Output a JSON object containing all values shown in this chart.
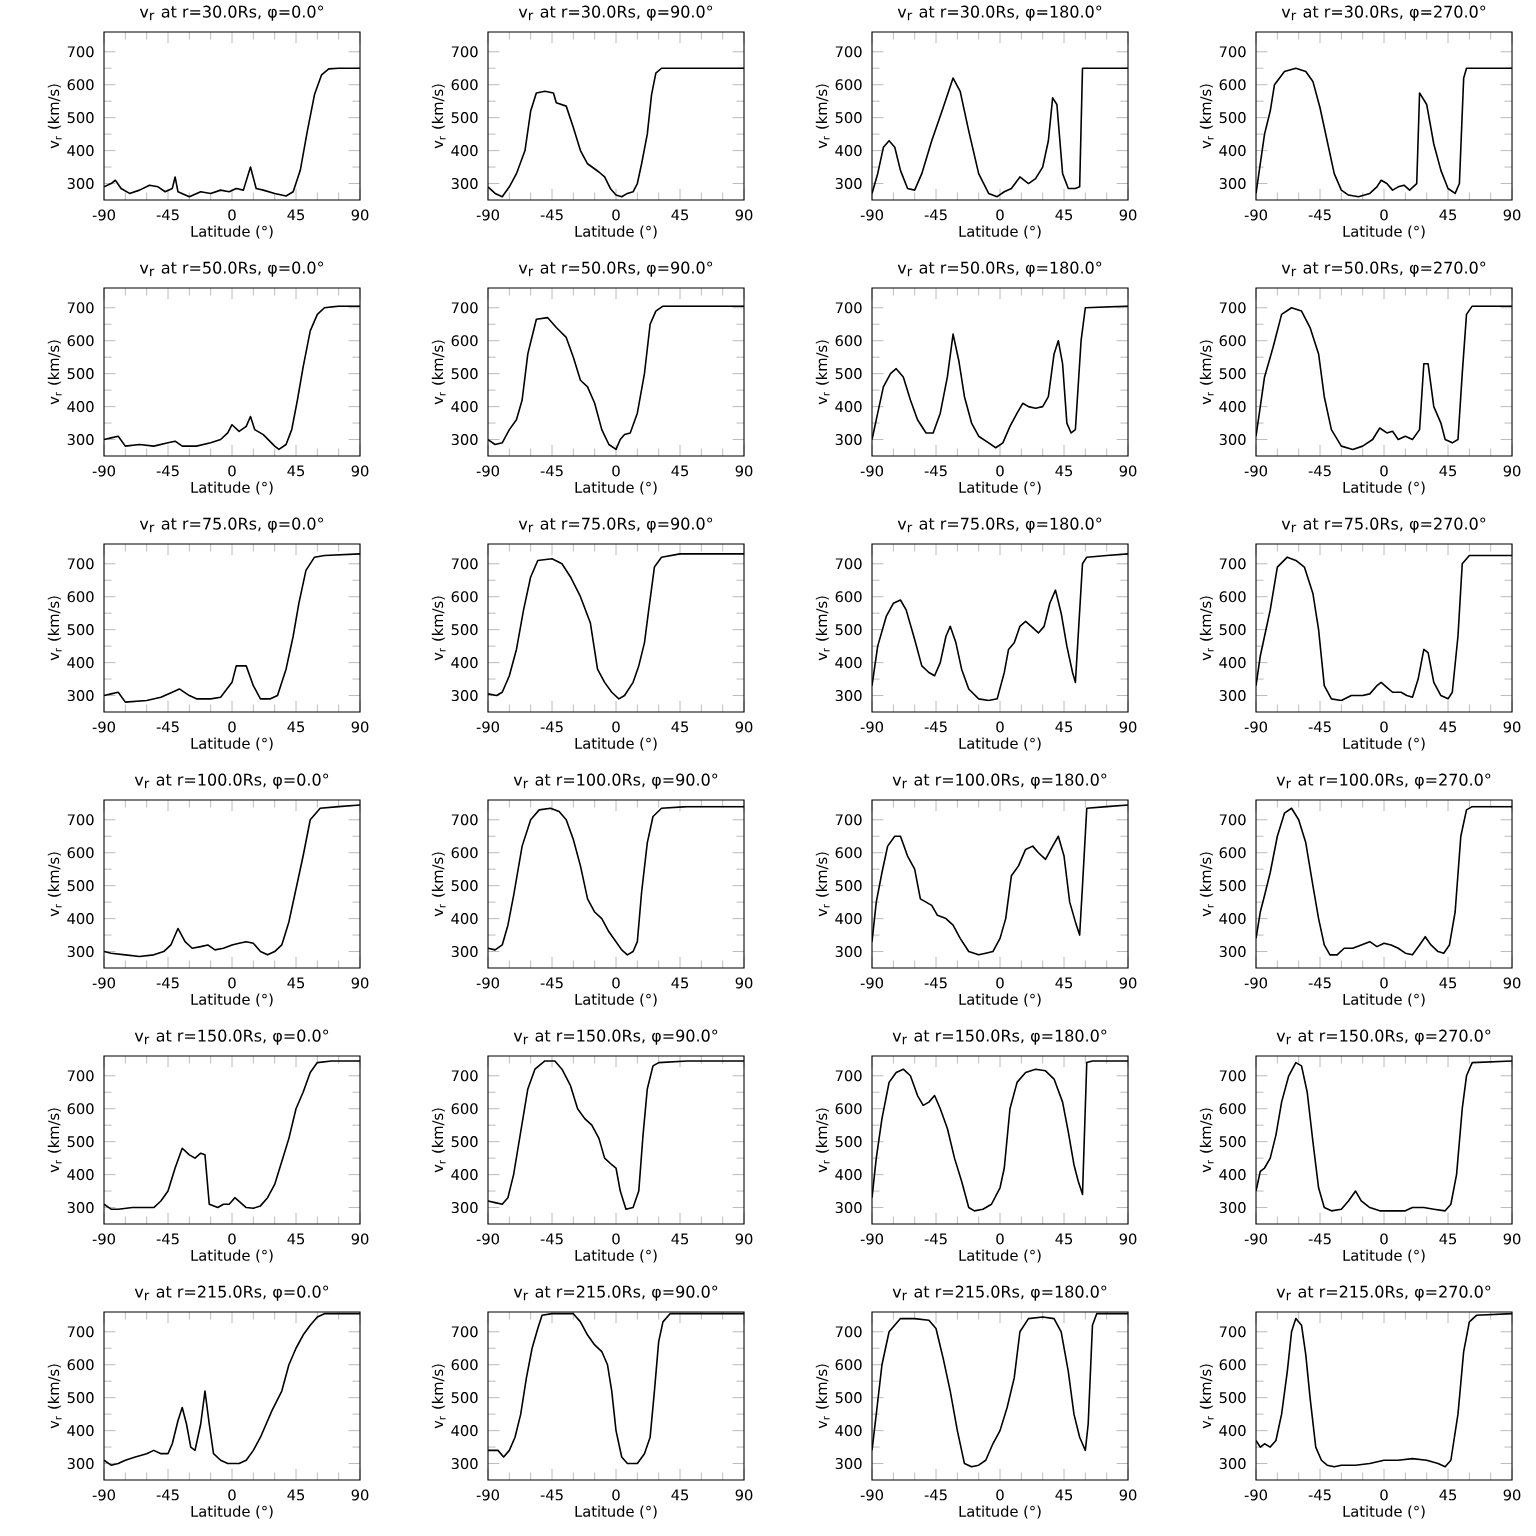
{
  "chart_data": [
    {
      "type": "line",
      "title": "v$_{r}$ at r=30.0Rs, φ=0.0°",
      "xlabel": "Latitude (°)",
      "ylabel": "v$_{r}$ (km/s)",
      "xlim": [
        -90,
        90
      ],
      "xticks": [
        -90,
        -45,
        0,
        45,
        90
      ],
      "ylim": [
        250,
        760
      ],
      "yticks": [
        300,
        400,
        500,
        600,
        700
      ],
      "color": "#000000",
      "x": [
        -90,
        -85,
        -82,
        -78,
        -72,
        -65,
        -58,
        -52,
        -47,
        -42,
        -40,
        -38,
        -30,
        -22,
        -15,
        -8,
        -2,
        3,
        8,
        13,
        17,
        22,
        30,
        38,
        43,
        48,
        53,
        58,
        63,
        68,
        75,
        90
      ],
      "values": [
        290,
        300,
        310,
        285,
        270,
        280,
        295,
        290,
        275,
        285,
        320,
        275,
        260,
        275,
        270,
        280,
        275,
        285,
        280,
        350,
        285,
        280,
        270,
        262,
        275,
        340,
        460,
        570,
        630,
        648,
        650,
        650
      ]
    },
    {
      "type": "line",
      "title": "v$_{r}$ at r=30.0Rs, φ=90.0°",
      "xlabel": "Latitude (°)",
      "ylabel": "v$_{r}$ (km/s)",
      "xlim": [
        -90,
        90
      ],
      "xticks": [
        -90,
        -45,
        0,
        45,
        90
      ],
      "ylim": [
        250,
        760
      ],
      "yticks": [
        300,
        400,
        500,
        600,
        700
      ],
      "color": "#000000",
      "x": [
        -90,
        -85,
        -80,
        -75,
        -70,
        -64,
        -60,
        -56,
        -50,
        -44,
        -42,
        -35,
        -30,
        -25,
        -20,
        -12,
        -8,
        -4,
        0,
        4,
        8,
        12,
        15,
        18,
        22,
        25,
        28,
        32,
        90
      ],
      "values": [
        290,
        270,
        260,
        290,
        330,
        400,
        520,
        575,
        580,
        575,
        545,
        535,
        470,
        400,
        360,
        335,
        320,
        285,
        265,
        260,
        270,
        275,
        300,
        360,
        450,
        570,
        635,
        650,
        650
      ]
    },
    {
      "type": "line",
      "title": "v$_{r}$ at r=30.0Rs, φ=180.0°",
      "xlabel": "Latitude (°)",
      "ylabel": "v$_{r}$ (km/s)",
      "xlim": [
        -90,
        90
      ],
      "xticks": [
        -90,
        -45,
        0,
        45,
        90
      ],
      "ylim": [
        250,
        760
      ],
      "yticks": [
        300,
        400,
        500,
        600,
        700
      ],
      "color": "#000000",
      "x": [
        -90,
        -86,
        -82,
        -78,
        -74,
        -70,
        -65,
        -60,
        -55,
        -48,
        -40,
        -33,
        -28,
        -22,
        -15,
        -8,
        -2,
        3,
        8,
        14,
        20,
        25,
        30,
        34,
        37,
        40,
        44,
        48,
        53,
        56,
        58,
        90
      ],
      "values": [
        270,
        330,
        410,
        430,
        410,
        340,
        285,
        280,
        330,
        430,
        530,
        620,
        580,
        460,
        330,
        270,
        260,
        275,
        285,
        320,
        300,
        315,
        350,
        430,
        560,
        540,
        330,
        285,
        285,
        290,
        650,
        650
      ]
    },
    {
      "type": "line",
      "title": "v$_{r}$ at r=30.0Rs, φ=270.0°",
      "xlabel": "Latitude (°)",
      "ylabel": "v$_{r}$ (km/s)",
      "xlim": [
        -90,
        90
      ],
      "xticks": [
        -90,
        -45,
        0,
        45,
        90
      ],
      "ylim": [
        250,
        760
      ],
      "yticks": [
        300,
        400,
        500,
        600,
        700
      ],
      "color": "#000000",
      "x": [
        -90,
        -88,
        -84,
        -80,
        -77,
        -70,
        -62,
        -55,
        -50,
        -45,
        -40,
        -35,
        -30,
        -25,
        -18,
        -10,
        -5,
        -2,
        2,
        6,
        10,
        14,
        18,
        23,
        25,
        30,
        35,
        40,
        45,
        50,
        53,
        56,
        58,
        90
      ],
      "values": [
        270,
        330,
        450,
        520,
        600,
        640,
        650,
        640,
        610,
        530,
        430,
        330,
        280,
        265,
        260,
        270,
        290,
        310,
        300,
        280,
        290,
        295,
        280,
        300,
        575,
        540,
        420,
        340,
        285,
        270,
        300,
        620,
        650,
        650
      ]
    },
    {
      "type": "line",
      "title": "v$_{r}$ at r=50.0Rs, φ=0.0°",
      "xlabel": "Latitude (°)",
      "ylabel": "v$_{r}$ (km/s)",
      "xlim": [
        -90,
        90
      ],
      "xticks": [
        -90,
        -45,
        0,
        45,
        90
      ],
      "ylim": [
        250,
        760
      ],
      "yticks": [
        300,
        400,
        500,
        600,
        700
      ],
      "color": "#000000",
      "x": [
        -90,
        -85,
        -80,
        -75,
        -65,
        -55,
        -45,
        -40,
        -35,
        -25,
        -15,
        -8,
        -3,
        0,
        5,
        10,
        13,
        16,
        22,
        30,
        33,
        38,
        42,
        46,
        50,
        55,
        60,
        65,
        75,
        90
      ],
      "values": [
        300,
        305,
        310,
        280,
        285,
        280,
        290,
        295,
        280,
        280,
        290,
        300,
        320,
        345,
        325,
        340,
        370,
        330,
        315,
        280,
        270,
        285,
        330,
        420,
        520,
        630,
        680,
        700,
        705,
        705
      ]
    },
    {
      "type": "line",
      "title": "v$_{r}$ at r=50.0Rs, φ=90.0°",
      "xlabel": "Latitude (°)",
      "ylabel": "v$_{r}$ (km/s)",
      "xlim": [
        -90,
        90
      ],
      "xticks": [
        -90,
        -45,
        0,
        45,
        90
      ],
      "ylim": [
        250,
        760
      ],
      "yticks": [
        300,
        400,
        500,
        600,
        700
      ],
      "color": "#000000",
      "x": [
        -90,
        -85,
        -80,
        -75,
        -70,
        -66,
        -62,
        -56,
        -48,
        -42,
        -35,
        -30,
        -25,
        -20,
        -15,
        -10,
        -5,
        0,
        3,
        6,
        10,
        15,
        20,
        24,
        28,
        33,
        90
      ],
      "values": [
        300,
        285,
        290,
        330,
        360,
        420,
        560,
        665,
        670,
        640,
        610,
        550,
        480,
        460,
        410,
        330,
        285,
        270,
        300,
        315,
        320,
        380,
        500,
        650,
        690,
        705,
        705
      ]
    },
    {
      "type": "line",
      "title": "v$_{r}$ at r=50.0Rs, φ=180.0°",
      "xlabel": "Latitude (°)",
      "ylabel": "v$_{r}$ (km/s)",
      "xlim": [
        -90,
        90
      ],
      "xticks": [
        -90,
        -45,
        0,
        45,
        90
      ],
      "ylim": [
        250,
        760
      ],
      "yticks": [
        300,
        400,
        500,
        600,
        700
      ],
      "color": "#000000",
      "x": [
        -90,
        -86,
        -82,
        -77,
        -73,
        -68,
        -63,
        -58,
        -52,
        -47,
        -42,
        -37,
        -33,
        -29,
        -25,
        -20,
        -15,
        -8,
        -3,
        2,
        7,
        12,
        16,
        20,
        25,
        30,
        34,
        38,
        41,
        44,
        47,
        50,
        53,
        57,
        60,
        90
      ],
      "values": [
        300,
        380,
        460,
        500,
        515,
        490,
        420,
        360,
        320,
        320,
        380,
        490,
        620,
        540,
        430,
        350,
        310,
        290,
        275,
        290,
        340,
        380,
        410,
        400,
        395,
        400,
        430,
        560,
        600,
        530,
        350,
        320,
        330,
        600,
        700,
        705
      ]
    },
    {
      "type": "line",
      "title": "v$_{r}$ at r=50.0Rs, φ=270.0°",
      "xlabel": "Latitude (°)",
      "ylabel": "v$_{r}$ (km/s)",
      "xlim": [
        -90,
        90
      ],
      "xticks": [
        -90,
        -45,
        0,
        45,
        90
      ],
      "ylim": [
        250,
        760
      ],
      "yticks": [
        300,
        400,
        500,
        600,
        700
      ],
      "color": "#000000",
      "x": [
        -90,
        -87,
        -84,
        -78,
        -72,
        -65,
        -58,
        -52,
        -46,
        -42,
        -37,
        -30,
        -22,
        -15,
        -8,
        -3,
        2,
        6,
        10,
        15,
        20,
        25,
        28,
        31,
        35,
        40,
        43,
        48,
        52,
        55,
        58,
        62,
        90
      ],
      "values": [
        310,
        400,
        490,
        580,
        680,
        700,
        690,
        640,
        560,
        430,
        330,
        280,
        270,
        280,
        300,
        335,
        320,
        325,
        300,
        310,
        300,
        330,
        530,
        530,
        400,
        350,
        300,
        290,
        300,
        500,
        680,
        705,
        705
      ]
    },
    {
      "type": "line",
      "title": "v$_{r}$ at r=75.0Rs, φ=0.0°",
      "xlabel": "Latitude (°)",
      "ylabel": "v$_{r}$ (km/s)",
      "xlim": [
        -90,
        90
      ],
      "xticks": [
        -90,
        -45,
        0,
        45,
        90
      ],
      "ylim": [
        250,
        760
      ],
      "yticks": [
        300,
        400,
        500,
        600,
        700
      ],
      "color": "#000000",
      "x": [
        -90,
        -85,
        -80,
        -75,
        -60,
        -50,
        -42,
        -37,
        -30,
        -25,
        -15,
        -8,
        0,
        3,
        10,
        15,
        20,
        27,
        32,
        38,
        43,
        47,
        52,
        58,
        65,
        90
      ],
      "values": [
        300,
        305,
        310,
        280,
        285,
        295,
        310,
        320,
        300,
        290,
        290,
        295,
        340,
        390,
        390,
        330,
        290,
        290,
        300,
        380,
        480,
        580,
        680,
        720,
        725,
        730
      ]
    },
    {
      "type": "line",
      "title": "v$_{r}$ at r=75.0Rs, φ=90.0°",
      "xlabel": "Latitude (°)",
      "ylabel": "v$_{r}$ (km/s)",
      "xlim": [
        -90,
        90
      ],
      "xticks": [
        -90,
        -45,
        0,
        45,
        90
      ],
      "ylim": [
        250,
        760
      ],
      "yticks": [
        300,
        400,
        500,
        600,
        700
      ],
      "color": "#000000",
      "x": [
        -90,
        -84,
        -80,
        -75,
        -70,
        -65,
        -60,
        -55,
        -45,
        -38,
        -32,
        -25,
        -18,
        -13,
        -8,
        -3,
        2,
        6,
        12,
        16,
        20,
        23,
        27,
        32,
        45,
        90
      ],
      "values": [
        305,
        300,
        310,
        360,
        440,
        560,
        660,
        710,
        715,
        700,
        660,
        600,
        520,
        380,
        340,
        310,
        290,
        300,
        340,
        390,
        460,
        560,
        690,
        720,
        730,
        730
      ]
    },
    {
      "type": "line",
      "title": "v$_{r}$ at r=75.0Rs, φ=180.0°",
      "xlabel": "Latitude (°)",
      "ylabel": "v$_{r}$ (km/s)",
      "xlim": [
        -90,
        90
      ],
      "xticks": [
        -90,
        -45,
        0,
        45,
        90
      ],
      "ylim": [
        250,
        760
      ],
      "yticks": [
        300,
        400,
        500,
        600,
        700
      ],
      "color": "#000000",
      "x": [
        -90,
        -86,
        -80,
        -75,
        -70,
        -66,
        -60,
        -55,
        -50,
        -46,
        -42,
        -38,
        -35,
        -31,
        -27,
        -22,
        -15,
        -8,
        -2,
        3,
        6,
        10,
        14,
        18,
        22,
        27,
        31,
        35,
        39,
        43,
        47,
        51,
        53,
        58,
        61,
        75,
        90
      ],
      "values": [
        330,
        450,
        540,
        580,
        590,
        560,
        470,
        390,
        370,
        360,
        400,
        480,
        510,
        460,
        380,
        320,
        290,
        285,
        290,
        370,
        440,
        460,
        510,
        525,
        510,
        490,
        510,
        580,
        620,
        550,
        450,
        370,
        340,
        700,
        720,
        725,
        730
      ]
    },
    {
      "type": "line",
      "title": "v$_{r}$ at r=75.0Rs, φ=270.0°",
      "xlabel": "Latitude (°)",
      "ylabel": "v$_{r}$ (km/s)",
      "xlim": [
        -90,
        90
      ],
      "xticks": [
        -90,
        -45,
        0,
        45,
        90
      ],
      "ylim": [
        250,
        760
      ],
      "yticks": [
        300,
        400,
        500,
        600,
        700
      ],
      "color": "#000000",
      "x": [
        -90,
        -87,
        -84,
        -80,
        -75,
        -68,
        -62,
        -56,
        -50,
        -46,
        -42,
        -37,
        -30,
        -23,
        -15,
        -10,
        -5,
        -2,
        2,
        6,
        12,
        16,
        20,
        24,
        28,
        31,
        35,
        40,
        45,
        48,
        52,
        55,
        60,
        90
      ],
      "values": [
        330,
        420,
        480,
        560,
        690,
        720,
        710,
        690,
        610,
        500,
        330,
        290,
        285,
        300,
        300,
        305,
        330,
        340,
        325,
        310,
        310,
        300,
        295,
        350,
        440,
        430,
        340,
        300,
        290,
        310,
        480,
        700,
        725,
        725
      ]
    },
    {
      "type": "line",
      "title": "v$_{r}$ at r=100.0Rs, φ=0.0°",
      "xlabel": "Latitude (°)",
      "ylabel": "v$_{r}$ (km/s)",
      "xlim": [
        -90,
        90
      ],
      "xticks": [
        -90,
        -45,
        0,
        45,
        90
      ],
      "ylim": [
        250,
        760
      ],
      "yticks": [
        300,
        400,
        500,
        600,
        700
      ],
      "color": "#000000",
      "x": [
        -90,
        -85,
        -75,
        -65,
        -55,
        -48,
        -43,
        -38,
        -33,
        -28,
        -22,
        -17,
        -12,
        -6,
        0,
        5,
        10,
        15,
        20,
        25,
        30,
        35,
        40,
        45,
        50,
        55,
        62,
        75,
        90
      ],
      "values": [
        300,
        295,
        290,
        285,
        290,
        300,
        320,
        370,
        330,
        310,
        315,
        320,
        305,
        310,
        320,
        325,
        330,
        325,
        300,
        290,
        300,
        320,
        390,
        490,
        590,
        700,
        735,
        740,
        745
      ]
    },
    {
      "type": "line",
      "title": "v$_{r}$ at r=100.0Rs, φ=90.0°",
      "xlabel": "Latitude (°)",
      "ylabel": "v$_{r}$ (km/s)",
      "xlim": [
        -90,
        90
      ],
      "xticks": [
        -90,
        -45,
        0,
        45,
        90
      ],
      "ylim": [
        250,
        760
      ],
      "yticks": [
        300,
        400,
        500,
        600,
        700
      ],
      "color": "#000000",
      "x": [
        -90,
        -85,
        -80,
        -76,
        -72,
        -66,
        -60,
        -54,
        -46,
        -40,
        -35,
        -30,
        -25,
        -20,
        -15,
        -10,
        -5,
        0,
        4,
        8,
        12,
        15,
        18,
        22,
        26,
        32,
        50,
        90
      ],
      "values": [
        310,
        305,
        320,
        380,
        470,
        620,
        700,
        730,
        735,
        725,
        700,
        640,
        560,
        460,
        420,
        400,
        360,
        330,
        305,
        290,
        300,
        330,
        480,
        630,
        710,
        735,
        740,
        740
      ]
    },
    {
      "type": "line",
      "title": "v$_{r}$ at r=100.0Rs, φ=180.0°",
      "xlabel": "Latitude (°)",
      "ylabel": "v$_{r}$ (km/s)",
      "xlim": [
        -90,
        90
      ],
      "xticks": [
        -90,
        -45,
        0,
        45,
        90
      ],
      "ylim": [
        250,
        760
      ],
      "yticks": [
        300,
        400,
        500,
        600,
        700
      ],
      "color": "#000000",
      "x": [
        -90,
        -87,
        -83,
        -79,
        -74,
        -70,
        -65,
        -60,
        -56,
        -52,
        -48,
        -44,
        -38,
        -33,
        -28,
        -22,
        -15,
        -10,
        -5,
        0,
        4,
        8,
        13,
        18,
        23,
        27,
        32,
        37,
        41,
        45,
        49,
        53,
        56,
        58,
        61,
        75,
        90
      ],
      "values": [
        330,
        450,
        540,
        620,
        650,
        650,
        590,
        550,
        460,
        450,
        440,
        410,
        400,
        380,
        340,
        300,
        290,
        295,
        300,
        340,
        400,
        530,
        560,
        610,
        620,
        600,
        580,
        620,
        650,
        590,
        450,
        390,
        350,
        500,
        735,
        740,
        745
      ]
    },
    {
      "type": "line",
      "title": "v$_{r}$ at r=100.0Rs, φ=270.0°",
      "xlabel": "Latitude (°)",
      "ylabel": "v$_{r}$ (km/s)",
      "xlim": [
        -90,
        90
      ],
      "xticks": [
        -90,
        -45,
        0,
        45,
        90
      ],
      "ylim": [
        250,
        760
      ],
      "yticks": [
        300,
        400,
        500,
        600,
        700
      ],
      "color": "#000000",
      "x": [
        -90,
        -87,
        -84,
        -80,
        -75,
        -70,
        -65,
        -60,
        -55,
        -50,
        -46,
        -42,
        -38,
        -33,
        -28,
        -22,
        -16,
        -10,
        -5,
        0,
        5,
        10,
        15,
        20,
        25,
        29,
        33,
        38,
        42,
        46,
        50,
        54,
        58,
        62,
        90
      ],
      "values": [
        340,
        420,
        470,
        540,
        650,
        720,
        735,
        700,
        630,
        500,
        400,
        320,
        290,
        290,
        310,
        310,
        320,
        330,
        315,
        325,
        320,
        310,
        295,
        290,
        320,
        345,
        320,
        300,
        295,
        320,
        420,
        650,
        730,
        740,
        740
      ]
    },
    {
      "type": "line",
      "title": "v$_{r}$ at r=150.0Rs, φ=0.0°",
      "xlabel": "Latitude (°)",
      "ylabel": "v$_{r}$ (km/s)",
      "xlim": [
        -90,
        90
      ],
      "xticks": [
        -90,
        -45,
        0,
        45,
        90
      ],
      "ylim": [
        250,
        760
      ],
      "yticks": [
        300,
        400,
        500,
        600,
        700
      ],
      "color": "#000000",
      "x": [
        -90,
        -85,
        -80,
        -70,
        -55,
        -50,
        -45,
        -40,
        -35,
        -30,
        -26,
        -22,
        -19,
        -16,
        -10,
        -6,
        -2,
        2,
        6,
        10,
        15,
        20,
        25,
        30,
        35,
        40,
        45,
        50,
        55,
        60,
        70,
        90
      ],
      "values": [
        310,
        295,
        295,
        300,
        300,
        320,
        350,
        420,
        480,
        460,
        450,
        465,
        460,
        310,
        300,
        310,
        310,
        330,
        315,
        300,
        298,
        305,
        330,
        370,
        440,
        510,
        600,
        650,
        710,
        740,
        745,
        745
      ]
    },
    {
      "type": "line",
      "title": "v$_{r}$ at r=150.0Rs, φ=90.0°",
      "xlabel": "Latitude (°)",
      "ylabel": "v$_{r}$ (km/s)",
      "xlim": [
        -90,
        90
      ],
      "xticks": [
        -90,
        -45,
        0,
        45,
        90
      ],
      "ylim": [
        250,
        760
      ],
      "yticks": [
        300,
        400,
        500,
        600,
        700
      ],
      "color": "#000000",
      "x": [
        -90,
        -85,
        -80,
        -76,
        -72,
        -67,
        -62,
        -57,
        -50,
        -43,
        -38,
        -32,
        -27,
        -22,
        -17,
        -12,
        -8,
        -3,
        0,
        3,
        7,
        12,
        16,
        19,
        22,
        26,
        30,
        50,
        90
      ],
      "values": [
        320,
        315,
        310,
        330,
        400,
        530,
        660,
        720,
        745,
        745,
        720,
        670,
        600,
        570,
        550,
        510,
        450,
        430,
        420,
        350,
        295,
        300,
        350,
        520,
        660,
        730,
        740,
        745,
        745
      ]
    },
    {
      "type": "line",
      "title": "v$_{r}$ at r=150.0Rs, φ=180.0°",
      "xlabel": "Latitude (°)",
      "ylabel": "v$_{r}$ (km/s)",
      "xlim": [
        -90,
        90
      ],
      "xticks": [
        -90,
        -45,
        0,
        45,
        90
      ],
      "ylim": [
        250,
        760
      ],
      "yticks": [
        300,
        400,
        500,
        600,
        700
      ],
      "color": "#000000",
      "x": [
        -90,
        -87,
        -83,
        -78,
        -73,
        -68,
        -63,
        -58,
        -54,
        -50,
        -46,
        -42,
        -37,
        -32,
        -27,
        -22,
        -18,
        -12,
        -6,
        0,
        3,
        7,
        12,
        18,
        25,
        32,
        38,
        44,
        48,
        52,
        55,
        58,
        61,
        65,
        90
      ],
      "values": [
        330,
        450,
        570,
        680,
        710,
        720,
        700,
        640,
        610,
        620,
        640,
        600,
        540,
        450,
        380,
        300,
        290,
        295,
        310,
        360,
        420,
        600,
        680,
        710,
        720,
        715,
        690,
        620,
        530,
        430,
        380,
        340,
        740,
        745,
        745
      ]
    },
    {
      "type": "line",
      "title": "v$_{r}$ at r=150.0Rs, φ=270.0°",
      "xlabel": "Latitude (°)",
      "ylabel": "v$_{r}$ (km/s)",
      "xlim": [
        -90,
        90
      ],
      "xticks": [
        -90,
        -45,
        0,
        45,
        90
      ],
      "ylim": [
        250,
        760
      ],
      "yticks": [
        300,
        400,
        500,
        600,
        700
      ],
      "color": "#000000",
      "x": [
        -90,
        -87,
        -84,
        -80,
        -76,
        -72,
        -67,
        -62,
        -58,
        -54,
        -50,
        -46,
        -42,
        -37,
        -30,
        -25,
        -20,
        -16,
        -10,
        -3,
        5,
        15,
        20,
        28,
        35,
        43,
        47,
        51,
        55,
        58,
        62,
        90
      ],
      "values": [
        350,
        410,
        420,
        450,
        520,
        620,
        700,
        740,
        730,
        650,
        500,
        360,
        300,
        290,
        295,
        320,
        350,
        320,
        300,
        290,
        290,
        290,
        300,
        300,
        295,
        290,
        310,
        400,
        600,
        700,
        740,
        745
      ]
    },
    {
      "type": "line",
      "title": "v$_{r}$ at r=215.0Rs, φ=0.0°",
      "xlabel": "Latitude (°)",
      "ylabel": "v$_{r}$ (km/s)",
      "xlim": [
        -90,
        90
      ],
      "xticks": [
        -90,
        -45,
        0,
        45,
        90
      ],
      "ylim": [
        250,
        760
      ],
      "yticks": [
        300,
        400,
        500,
        600,
        700
      ],
      "color": "#000000",
      "x": [
        -90,
        -85,
        -80,
        -75,
        -68,
        -60,
        -55,
        -50,
        -45,
        -42,
        -38,
        -35,
        -32,
        -29,
        -26,
        -22,
        -19,
        -16,
        -13,
        -8,
        -3,
        5,
        10,
        15,
        20,
        28,
        35,
        40,
        45,
        50,
        55,
        60,
        65,
        90
      ],
      "values": [
        310,
        295,
        300,
        310,
        320,
        330,
        340,
        330,
        330,
        360,
        430,
        470,
        420,
        350,
        340,
        420,
        520,
        420,
        330,
        310,
        300,
        300,
        310,
        340,
        380,
        460,
        520,
        600,
        650,
        690,
        720,
        745,
        755,
        755
      ]
    },
    {
      "type": "line",
      "title": "v$_{r}$ at r=215.0Rs, φ=90.0°",
      "xlabel": "Latitude (°)",
      "ylabel": "v$_{r}$ (km/s)",
      "xlim": [
        -90,
        90
      ],
      "xticks": [
        -90,
        -45,
        0,
        45,
        90
      ],
      "ylim": [
        250,
        760
      ],
      "yticks": [
        300,
        400,
        500,
        600,
        700
      ],
      "color": "#000000",
      "x": [
        -90,
        -87,
        -83,
        -79,
        -75,
        -71,
        -67,
        -63,
        -59,
        -55,
        -52,
        -45,
        -30,
        -25,
        -20,
        -15,
        -10,
        -6,
        -3,
        0,
        4,
        8,
        15,
        20,
        24,
        27,
        30,
        33,
        38,
        90
      ],
      "values": [
        340,
        340,
        340,
        320,
        340,
        380,
        450,
        560,
        650,
        710,
        750,
        755,
        755,
        730,
        690,
        660,
        640,
        600,
        520,
        400,
        320,
        300,
        300,
        330,
        380,
        520,
        670,
        730,
        755,
        755
      ]
    },
    {
      "type": "line",
      "title": "v$_{r}$ at r=215.0Rs, φ=180.0°",
      "xlabel": "Latitude (°)",
      "ylabel": "v$_{r}$ (km/s)",
      "xlim": [
        -90,
        90
      ],
      "xticks": [
        -90,
        -45,
        0,
        45,
        90
      ],
      "ylim": [
        250,
        760
      ],
      "yticks": [
        300,
        400,
        500,
        600,
        700
      ],
      "color": "#000000",
      "x": [
        -90,
        -87,
        -83,
        -78,
        -70,
        -60,
        -50,
        -45,
        -40,
        -35,
        -30,
        -25,
        -20,
        -15,
        -10,
        -5,
        0,
        5,
        10,
        14,
        20,
        30,
        38,
        43,
        48,
        52,
        56,
        60,
        62,
        65,
        68,
        90
      ],
      "values": [
        340,
        450,
        600,
        700,
        740,
        740,
        735,
        710,
        620,
        520,
        400,
        300,
        290,
        295,
        310,
        360,
        400,
        470,
        560,
        700,
        740,
        745,
        740,
        700,
        580,
        450,
        380,
        340,
        420,
        720,
        755,
        755
      ]
    },
    {
      "type": "line",
      "title": "v$_{r}$ at r=215.0Rs, φ=270.0°",
      "xlabel": "Latitude (°)",
      "ylabel": "v$_{r}$ (km/s)",
      "xlim": [
        -90,
        90
      ],
      "xticks": [
        -90,
        -45,
        0,
        45,
        90
      ],
      "ylim": [
        250,
        760
      ],
      "yticks": [
        300,
        400,
        500,
        600,
        700
      ],
      "color": "#000000",
      "x": [
        -90,
        -87,
        -84,
        -80,
        -76,
        -72,
        -68,
        -65,
        -62,
        -58,
        -55,
        -52,
        -48,
        -44,
        -40,
        -35,
        -30,
        -20,
        -10,
        0,
        10,
        20,
        30,
        38,
        43,
        47,
        52,
        56,
        60,
        65,
        90
      ],
      "values": [
        370,
        350,
        360,
        350,
        370,
        450,
        580,
        700,
        740,
        720,
        630,
        500,
        350,
        310,
        295,
        290,
        295,
        295,
        300,
        310,
        310,
        315,
        310,
        300,
        290,
        310,
        450,
        640,
        730,
        750,
        755
      ]
    }
  ]
}
